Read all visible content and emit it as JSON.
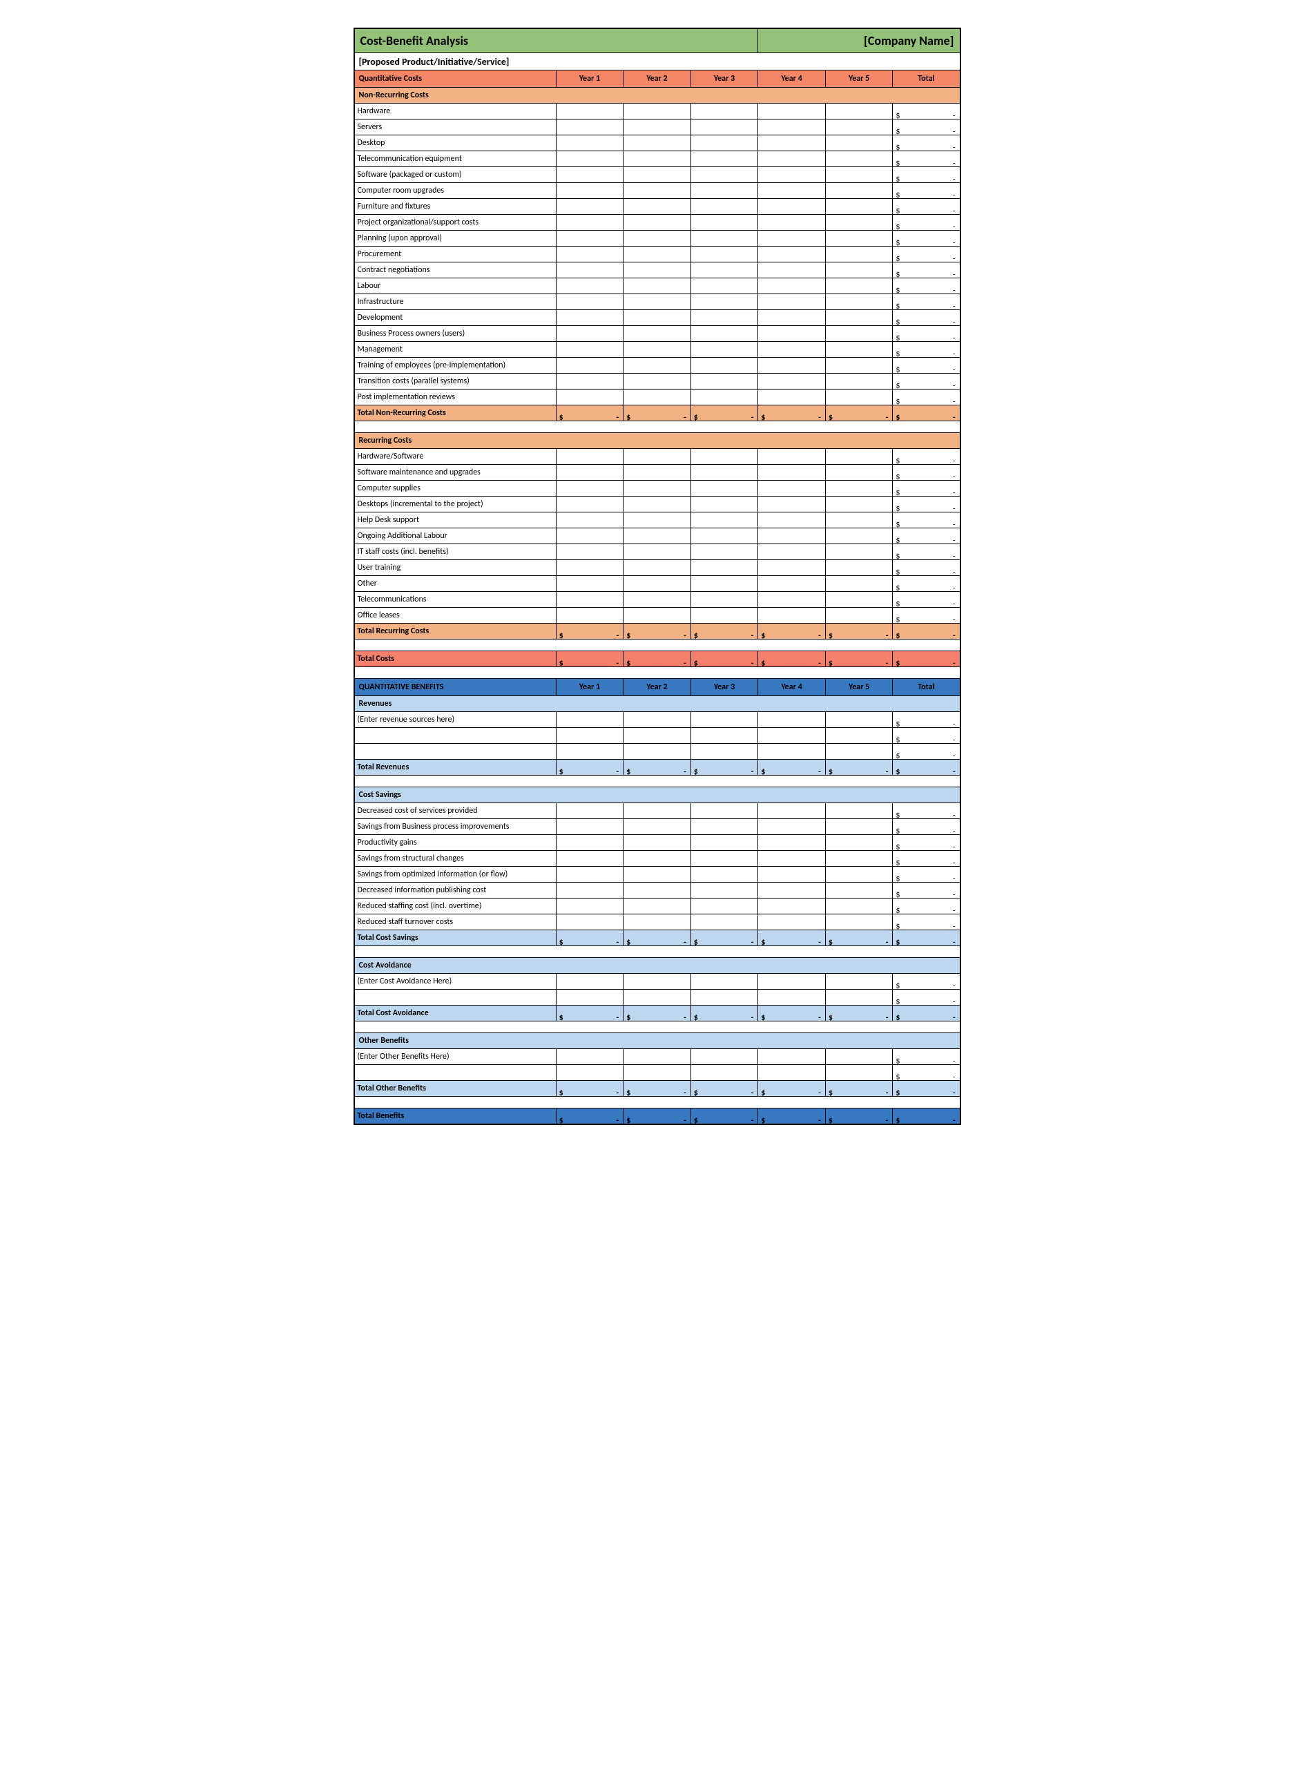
{
  "colors": {
    "title_bg": "#94c179",
    "costs_header_bg": "#f58668",
    "sub_orange_bg": "#f4b183",
    "total_orange_bg": "#f4b183",
    "total_costs_bg": "#f5806b",
    "benefits_header_bg": "#3878c0",
    "sub_blue_bg": "#bdd7ee",
    "total_blue_bg": "#bdd7ee",
    "total_benefits_bg": "#3878c0",
    "white": "#ffffff"
  },
  "title": "Cost-Benefit Analysis",
  "company": "[Company Name]",
  "subtitle": "[Proposed Product/Initiative/Service]",
  "years": [
    "Year 1",
    "Year 2",
    "Year 3",
    "Year 4",
    "Year 5"
  ],
  "total_label": "Total",
  "sections": {
    "costs": {
      "header": "Quantitative Costs",
      "groups": [
        {
          "name": "Non-Recurring Costs",
          "items": [
            "Hardware",
            "Servers",
            "Desktop",
            "Telecommunication equipment",
            "Software (packaged or custom)",
            "Computer room upgrades",
            "Furniture and fixtures",
            "Project organizational/support costs",
            "Planning (upon approval)",
            "Procurement",
            "Contract negotiations",
            "Labour",
            "Infrastructure",
            "Development",
            "Business Process owners (users)",
            "Management",
            "Training of employees (pre-implementation)",
            "Transition costs (parallel systems)",
            "Post implementation reviews"
          ],
          "total_label": "Total Non-Recurring Costs"
        },
        {
          "name": "Recurring Costs",
          "items": [
            "Hardware/Software",
            "Software maintenance and upgrades",
            "Computer supplies",
            "Desktops (incremental to the project)",
            "Help Desk support",
            "Ongoing Additional Labour",
            "IT staff costs (incl. benefits)",
            "User training",
            "Other",
            "Telecommunications",
            "Office leases"
          ],
          "total_label": "Total Recurring Costs"
        }
      ],
      "grand_total_label": "Total Costs"
    },
    "benefits": {
      "header": "QUANTITATIVE BENEFITS",
      "groups": [
        {
          "name": "Revenues",
          "items": [
            "(Enter revenue sources here)",
            "",
            ""
          ],
          "total_label": "Total Revenues"
        },
        {
          "name": "Cost Savings",
          "items": [
            "Decreased cost of services provided",
            "Savings from Business process improvements",
            "Productivity gains",
            "Savings from structural changes",
            "Savings from optimized information (or flow)",
            "Decreased information publishing cost",
            "Reduced staffing cost (incl. overtime)",
            "Reduced staff turnover costs"
          ],
          "total_label": "Total Cost Savings"
        },
        {
          "name": "Cost Avoidance",
          "items": [
            "(Enter Cost Avoidance Here)",
            ""
          ],
          "total_label": "Total Cost Avoidance"
        },
        {
          "name": "Other Benefits",
          "items": [
            "(Enter Other Benefits Here)",
            ""
          ],
          "total_label": "Total Other Benefits"
        }
      ],
      "grand_total_label": "Total Benefits"
    }
  }
}
